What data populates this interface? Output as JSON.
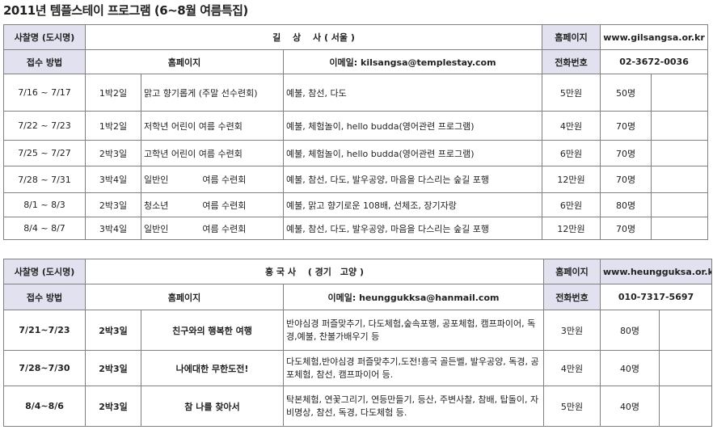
{
  "title": "2011년 템플스테이 프로그램 (6~8월 여름특집)",
  "labels": {
    "temple": "사찰명 (도시명)",
    "apply": "접수 방법",
    "homepage": "홈페이지",
    "phone": "전화번호"
  },
  "temples": [
    {
      "name": "길　 상　 사 ( 서울 )",
      "apply_method": "홈페이지",
      "email": "이메일: kilsangsa@templestay.com",
      "homepage": "www.gilsangsa.or.kr",
      "phone": "02-3672-0036",
      "programs": [
        {
          "dates": "7/16 ~ 7/17",
          "duration": "1박2일",
          "name": "맑고 향기롭게 (주말 선수련회)",
          "activities": "예불,  참선, 다도",
          "fee": "5만원",
          "capacity": "50명"
        },
        {
          "dates": "7/22 ~ 7/23",
          "duration": "1박2일",
          "name": "저학년 어린이 여름 수련회",
          "activities": "예불, 체험놀이, hello budda(영어관련 프로그램)",
          "fee": "4만원",
          "capacity": "70명"
        },
        {
          "dates": "7/25 ~ 7/27",
          "duration": "2박3일",
          "name": "고학년 어린이 여름 수련회",
          "activities": "예불, 체험놀이, hello budda(영어관련 프로그램)",
          "fee": "6만원",
          "capacity": "70명"
        },
        {
          "dates": "7/28 ~ 7/31",
          "duration": "3박4일",
          "name": "일반인            여름 수련회",
          "activities": "예불, 참선, 다도, 발우공양, 마음을 다스리는 숲길 포행",
          "fee": "12만원",
          "capacity": "70명"
        },
        {
          "dates": "8/1 ~ 8/3",
          "duration": "2박3일",
          "name": "청소년            여름 수련회",
          "activities": "예불, 맑고 향기로운 108배, 선체조, 장기자랑",
          "fee": "6만원",
          "capacity": "80명"
        },
        {
          "dates": "8/4 ~ 8/7",
          "duration": "3박4일",
          "name": "일반인            여름 수련회",
          "activities": "예불, 참선, 다도, 발우공양, 마음을 다스리는 숲길 포행",
          "fee": "12만원",
          "capacity": "70명"
        }
      ]
    },
    {
      "name": "흥 국 사　 ( 경기　고양 )",
      "apply_method": "홈페이지",
      "email": "이메일:   heunggukksa@hanmail.com",
      "homepage": "www.heungguksa.or.kr",
      "phone": "010-7317-5697",
      "programs": [
        {
          "dates": "7/21~7/23",
          "duration": "2박3일",
          "name": "친구와의 행복한 여행",
          "activities": "  반야심경 퍼즐맞추기,  다도체험,숲속포행,  공포체험,  캠프파이어, 독경,예불, 찬불가배우기 등",
          "fee": "3만원",
          "capacity": "80명"
        },
        {
          "dates": "7/28~7/30",
          "duration": "2박3일",
          "name": "나에대한 무한도전!",
          "activities": "다도체험,반야심경 퍼즐맞추기,도전!흥국 골든벨, 발우공양, 독경, 공포체험, 참선, 캠프파이어 등.",
          "fee": "4만원",
          "capacity": "40명"
        },
        {
          "dates": "8/4~8/6",
          "duration": "2박3일",
          "name": "참 나를 찾아서",
          "activities": "탁본체험, 연꽃그리기, 연등만들기, 등산, 주변사찰,    참배, 탑돌이, 자비명상, 참선, 독경, 다도체험 등.",
          "fee": "5만원",
          "capacity": "40명"
        }
      ]
    }
  ]
}
